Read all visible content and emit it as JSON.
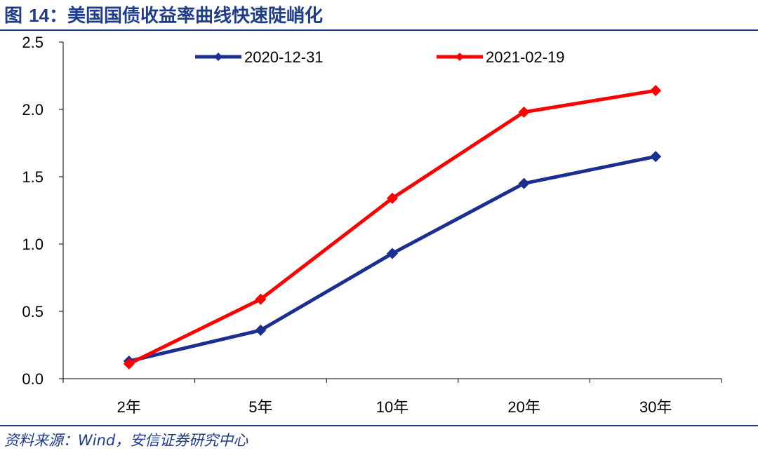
{
  "figure": {
    "title_prefix": "图 ",
    "title_number": "14",
    "title_text": "：美国国债收益率曲线快速陡峭化",
    "source": "资料来源：Wind，安信证券研究中心"
  },
  "colors": {
    "accent": "#1f3c88",
    "series_2020": "#1a2f8f",
    "series_2021": "#ff0000"
  },
  "chart_data": {
    "type": "line",
    "categories": [
      "2年",
      "5年",
      "10年",
      "20年",
      "30年"
    ],
    "series": [
      {
        "name": "2020-12-31",
        "values": [
          0.13,
          0.36,
          0.93,
          1.45,
          1.65
        ],
        "color": "#1a2f8f"
      },
      {
        "name": "2021-02-19",
        "values": [
          0.11,
          0.59,
          1.34,
          1.98,
          2.14
        ],
        "color": "#ff0000"
      }
    ],
    "ylim": [
      0,
      2.5
    ],
    "yticks": [
      "0.0",
      "0.5",
      "1.0",
      "1.5",
      "2.0",
      "2.5"
    ],
    "ytick_values": [
      0,
      0.5,
      1.0,
      1.5,
      2.0,
      2.5
    ],
    "xlabel": "",
    "ylabel": "",
    "grid": false,
    "legend_position": "top"
  }
}
